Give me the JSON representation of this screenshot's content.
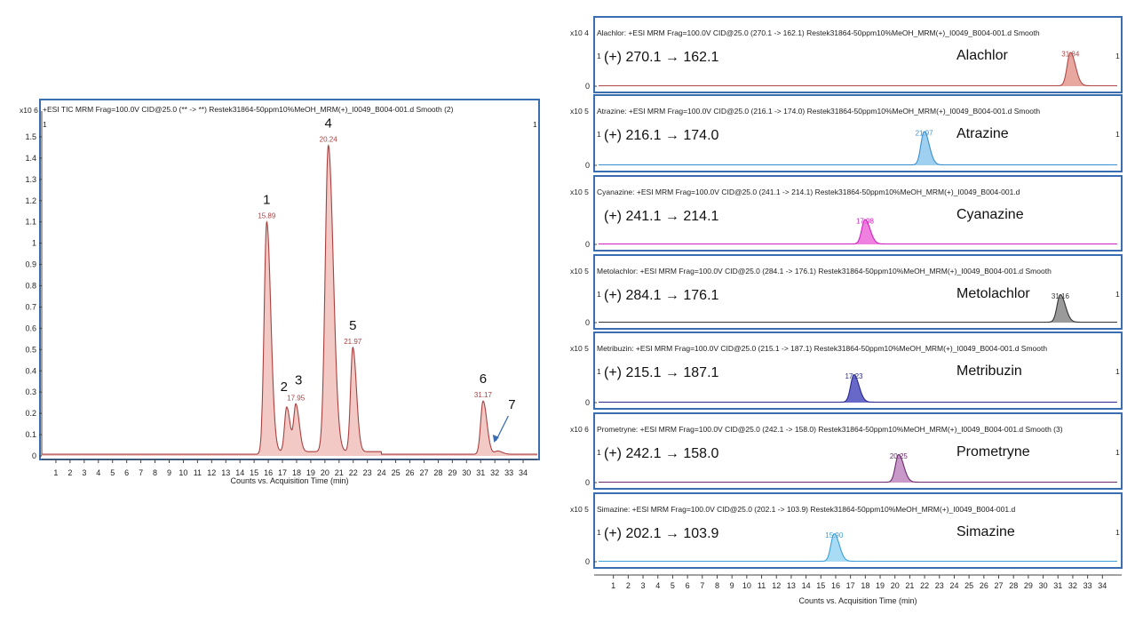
{
  "chart_data": [
    {
      "type": "line",
      "title": "+ESI TIC MRM Frag=100.0V CID@25.0 (** -> **) Restek31864-50ppm10%MeOH_MRM(+)_I0049_B004-001.d  Smooth (2)",
      "xlabel": "Counts vs. Acquisition Time (min)",
      "xlim": [
        0,
        35
      ],
      "ylim": [
        0,
        1.6
      ],
      "yexp": "x10 6",
      "yticks": [
        "0",
        "0.1",
        "0.2",
        "0.3",
        "0.4",
        "0.5",
        "0.6",
        "0.7",
        "0.8",
        "0.9",
        "1",
        "1.1",
        "1.2",
        "1.3",
        "1.4",
        "1.5"
      ],
      "xticks": [
        "1",
        "2",
        "3",
        "4",
        "5",
        "6",
        "7",
        "8",
        "9",
        "10",
        "11",
        "12",
        "13",
        "14",
        "15",
        "16",
        "17",
        "18",
        "19",
        "20",
        "21",
        "22",
        "23",
        "24",
        "25",
        "26",
        "27",
        "28",
        "29",
        "30",
        "31",
        "32",
        "33",
        "34"
      ],
      "corner_marks": [
        "1",
        "1"
      ],
      "color": "#a94040",
      "fill": "#f2c9c4",
      "peaks": [
        {
          "rt": 15.89,
          "height": 1.08,
          "width": 0.18,
          "rt_label": "15.89",
          "number": "1"
        },
        {
          "rt": 17.3,
          "height": 0.21,
          "width": 0.15,
          "rt_label": "",
          "number": "2"
        },
        {
          "rt": 17.95,
          "height": 0.22,
          "width": 0.15,
          "rt_label": "17.95",
          "number": "3"
        },
        {
          "rt": 20.24,
          "height": 1.44,
          "width": 0.22,
          "rt_label": "20.24",
          "number": "4"
        },
        {
          "rt": 21.97,
          "height": 0.49,
          "width": 0.16,
          "rt_label": "21.97",
          "number": "5"
        },
        {
          "rt": 31.17,
          "height": 0.25,
          "width": 0.17,
          "rt_label": "31.17",
          "number": "6"
        },
        {
          "rt": 32.2,
          "height": 0.015,
          "width": 0.2,
          "rt_label": "",
          "number": "7"
        }
      ]
    },
    {
      "type": "line",
      "xlabel": "Counts vs. Acquisition Time (min)",
      "xlim": [
        0,
        35
      ],
      "xticks": [
        "1",
        "2",
        "3",
        "4",
        "5",
        "6",
        "7",
        "8",
        "9",
        "10",
        "11",
        "12",
        "13",
        "14",
        "15",
        "16",
        "17",
        "18",
        "19",
        "20",
        "21",
        "22",
        "23",
        "24",
        "25",
        "26",
        "27",
        "28",
        "29",
        "30",
        "31",
        "32",
        "33",
        "34"
      ],
      "panels": [
        {
          "header": "Alachlor: +ESI MRM Frag=100.0V CID@25.0 (270.1 -> 162.1) Restek31864-50ppm10%MeOH_MRM(+)_I0049_B004-001.d Smooth",
          "yexp": "x10 4",
          "transition": "(+) 270.1 → 162.1",
          "compound": "Alachlor",
          "rt": 31.84,
          "rt_label": "31.84",
          "height": 0.75,
          "color": "#b04848",
          "fill": "#e8a8a0",
          "corner_marks": [
            "1",
            "1"
          ]
        },
        {
          "header": "Atrazine: +ESI MRM Frag=100.0V CID@25.0 (216.1 -> 174.0) Restek31864-50ppm10%MeOH_MRM(+)_I0049_B004-001.d Smooth",
          "yexp": "x10 5",
          "transition": "(+) 216.1 → 174.0",
          "compound": "Atrazine",
          "rt": 21.97,
          "rt_label": "21.97",
          "height": 0.75,
          "color": "#3a8fd0",
          "fill": "#9fd0f0",
          "corner_marks": [
            "1",
            "1"
          ]
        },
        {
          "header": "Cyanazine: +ESI MRM Frag=100.0V CID@25.0 (241.1 -> 214.1) Restek31864-50ppm10%MeOH_MRM(+)_I0049_B004-001.d",
          "yexp": "x10 5",
          "transition": "(+) 241.1 → 214.1",
          "compound": "Cyanazine",
          "rt": 17.98,
          "rt_label": "17.98",
          "height": 0.55,
          "color": "#d020c0",
          "fill": "#f080e0",
          "corner_marks": [
            "",
            ""
          ]
        },
        {
          "header": "Metolachlor: +ESI MRM Frag=100.0V CID@25.0 (284.1 -> 176.1) Restek31864-50ppm10%MeOH_MRM(+)_I0049_B004-001.d Smooth",
          "yexp": "x10 5",
          "transition": "(+) 284.1 → 176.1",
          "compound": "Metolachlor",
          "rt": 31.16,
          "rt_label": "31.16",
          "height": 0.62,
          "color": "#333333",
          "fill": "#9a9a9a",
          "corner_marks": [
            "1",
            "1"
          ]
        },
        {
          "header": "Metribuzin: +ESI MRM Frag=100.0V CID@25.0 (215.1 -> 187.1) Restek31864-50ppm10%MeOH_MRM(+)_I0049_B004-001.d Smooth",
          "yexp": "x10 5",
          "transition": "(+) 215.1 → 187.1",
          "compound": "Metribuzin",
          "rt": 17.23,
          "rt_label": "17.23",
          "height": 0.62,
          "color": "#2a2a90",
          "fill": "#6868c8",
          "corner_marks": [
            "1",
            "1"
          ]
        },
        {
          "header": "Prometryne: +ESI MRM Frag=100.0V CID@25.0 (242.1 -> 158.0) Restek31864-50ppm10%MeOH_MRM(+)_I0049_B004-001.d Smooth (3)",
          "yexp": "x10 6",
          "transition": "(+) 242.1 → 158.0",
          "compound": "Prometryne",
          "rt": 20.25,
          "rt_label": "20.25",
          "height": 0.62,
          "color": "#6a2a6a",
          "fill": "#c898c8",
          "corner_marks": [
            "1",
            "1"
          ]
        },
        {
          "header": "Simazine: +ESI MRM Frag=100.0V CID@25.0 (202.1 -> 103.9) Restek31864-50ppm10%MeOH_MRM(+)_I0049_B004-001.d",
          "yexp": "x10 5",
          "transition": "(+) 202.1 → 103.9",
          "compound": "Simazine",
          "rt": 15.9,
          "rt_label": "15.90",
          "height": 0.62,
          "color": "#3aa0d8",
          "fill": "#a8dcf4",
          "corner_marks": [
            "1",
            "1"
          ]
        }
      ]
    }
  ]
}
